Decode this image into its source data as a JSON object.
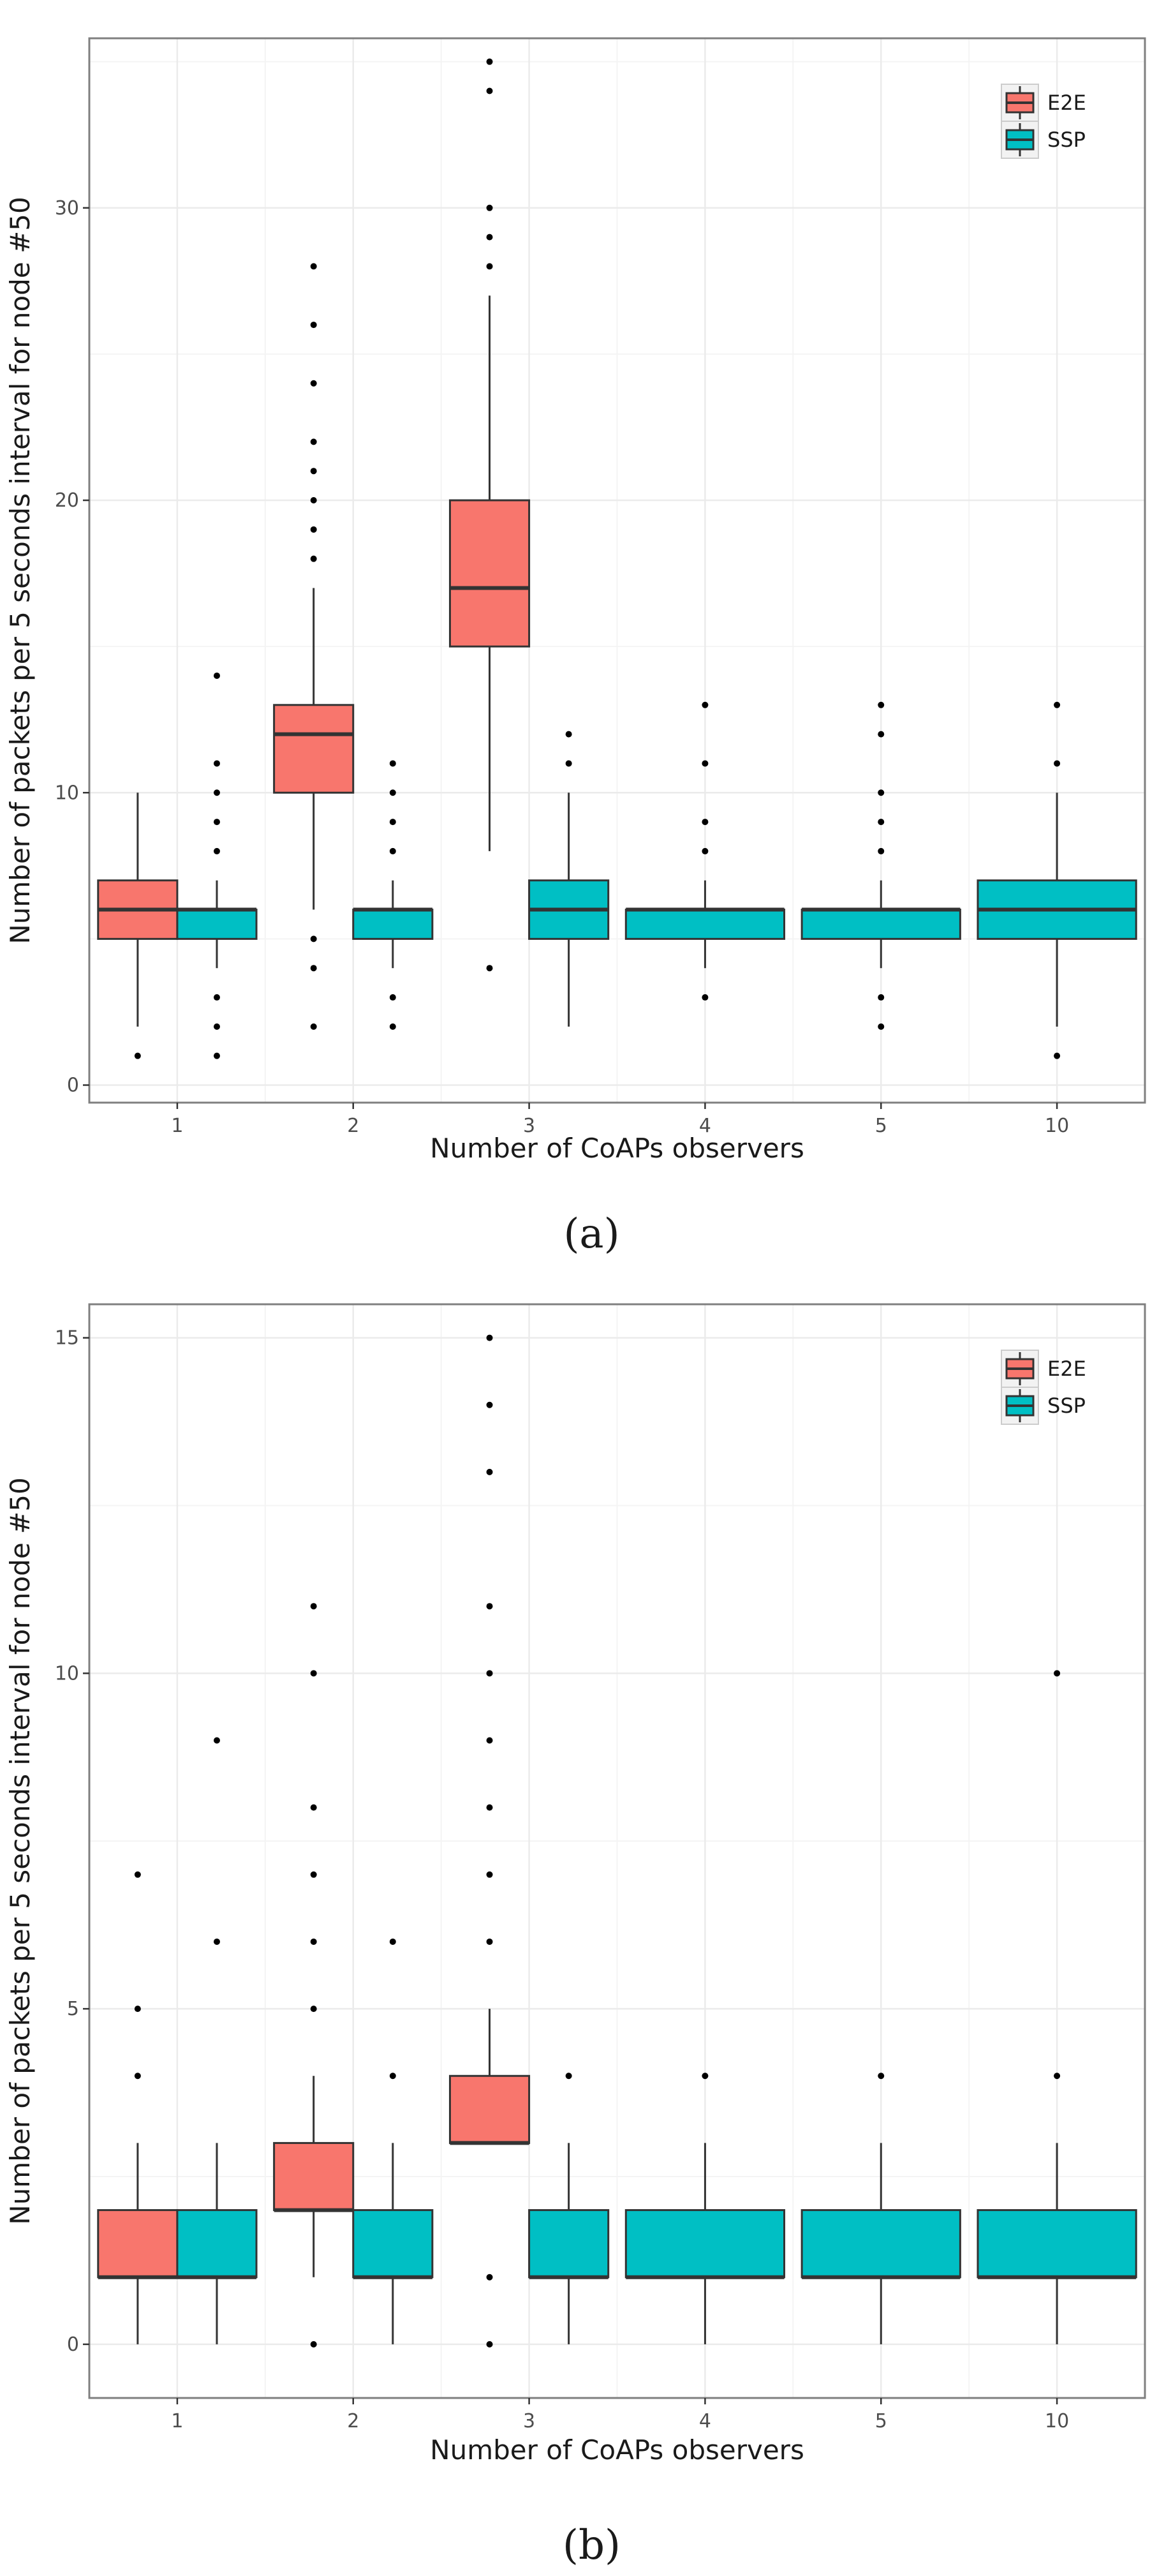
{
  "colors": {
    "e2e": "#F8766D",
    "ssp": "#00BFC4",
    "outline": "#333333",
    "grid_major": "#ebebeb",
    "grid_minor": "#f4f4f4",
    "panel_border": "#7f7f7f"
  },
  "chart_data": [
    {
      "type": "boxplot",
      "caption": "(a)",
      "xlabel": "Number of CoAPs observers",
      "ylabel": "Number of packets per 5 seconds interval for node #50",
      "categories": [
        "1",
        "2",
        "3",
        "4",
        "5",
        "10"
      ],
      "ylim": [
        -0.6,
        35.8
      ],
      "yticks": [
        0,
        10,
        20,
        30
      ],
      "grid": true,
      "legend": {
        "placement": "top-right",
        "entries": [
          "E2E",
          "SSP"
        ]
      },
      "series": [
        {
          "name": "E2E",
          "color_key": "e2e",
          "boxes": [
            {
              "category": "1",
              "whisker_low": 2,
              "q1": 5,
              "median": 6,
              "q3": 7,
              "whisker_high": 10,
              "outliers": [
                1
              ]
            },
            {
              "category": "2",
              "whisker_low": 6,
              "q1": 10,
              "median": 12,
              "q3": 13,
              "whisker_high": 17,
              "outliers": [
                2,
                4,
                5,
                18,
                19,
                20,
                21,
                22,
                24,
                26,
                28
              ]
            },
            {
              "category": "3",
              "whisker_low": 8,
              "q1": 15,
              "median": 17,
              "q3": 20,
              "whisker_high": 27,
              "outliers": [
                4,
                28,
                29,
                30,
                34,
                35
              ]
            }
          ]
        },
        {
          "name": "SSP",
          "color_key": "ssp",
          "boxes": [
            {
              "category": "1",
              "whisker_low": 4,
              "q1": 5,
              "median": 6,
              "q3": 6,
              "whisker_high": 7,
              "outliers": [
                1,
                2,
                3,
                8,
                9,
                10,
                11,
                14
              ]
            },
            {
              "category": "2",
              "whisker_low": 4,
              "q1": 5,
              "median": 6,
              "q3": 6,
              "whisker_high": 7,
              "outliers": [
                2,
                3,
                8,
                9,
                10,
                11
              ]
            },
            {
              "category": "3",
              "whisker_low": 2,
              "q1": 5,
              "median": 6,
              "q3": 7,
              "whisker_high": 10,
              "outliers": [
                11,
                12
              ]
            },
            {
              "category": "4",
              "whisker_low": 4,
              "q1": 5,
              "median": 6,
              "q3": 6,
              "whisker_high": 7,
              "outliers": [
                3,
                8,
                9,
                11,
                13
              ]
            },
            {
              "category": "5",
              "whisker_low": 4,
              "q1": 5,
              "median": 6,
              "q3": 6,
              "whisker_high": 7,
              "outliers": [
                2,
                3,
                8,
                9,
                10,
                12,
                13
              ]
            },
            {
              "category": "10",
              "whisker_low": 2,
              "q1": 5,
              "median": 6,
              "q3": 7,
              "whisker_high": 10,
              "outliers": [
                1,
                11,
                13
              ]
            }
          ]
        }
      ]
    },
    {
      "type": "boxplot",
      "caption": "(b)",
      "xlabel": "Number of CoAPs observers",
      "ylabel": "Number of packets per 5 seconds interval for node #50",
      "categories": [
        "1",
        "2",
        "3",
        "4",
        "5",
        "10"
      ],
      "ylim": [
        -0.8,
        15.5
      ],
      "yticks": [
        0,
        5,
        10,
        15
      ],
      "grid": true,
      "legend": {
        "placement": "top-right",
        "entries": [
          "E2E",
          "SSP"
        ]
      },
      "series": [
        {
          "name": "E2E",
          "color_key": "e2e",
          "boxes": [
            {
              "category": "1",
              "whisker_low": 0,
              "q1": 1,
              "median": 1,
              "q3": 2,
              "whisker_high": 3,
              "outliers": [
                4,
                5,
                7
              ]
            },
            {
              "category": "2",
              "whisker_low": 1,
              "q1": 2,
              "median": 2,
              "q3": 3,
              "whisker_high": 4,
              "outliers": [
                0,
                5,
                6,
                7,
                8,
                10,
                11
              ]
            },
            {
              "category": "3",
              "whisker_low": 3,
              "q1": 3,
              "median": 3,
              "q3": 4,
              "whisker_high": 5,
              "outliers": [
                0,
                1,
                6,
                7,
                8,
                9,
                10,
                11,
                13,
                14,
                15
              ]
            }
          ]
        },
        {
          "name": "SSP",
          "color_key": "ssp",
          "boxes": [
            {
              "category": "1",
              "whisker_low": 0,
              "q1": 1,
              "median": 1,
              "q3": 2,
              "whisker_high": 3,
              "outliers": [
                6,
                9
              ]
            },
            {
              "category": "2",
              "whisker_low": 0,
              "q1": 1,
              "median": 1,
              "q3": 2,
              "whisker_high": 3,
              "outliers": [
                4,
                6
              ]
            },
            {
              "category": "3",
              "whisker_low": 0,
              "q1": 1,
              "median": 1,
              "q3": 2,
              "whisker_high": 3,
              "outliers": [
                4
              ]
            },
            {
              "category": "4",
              "whisker_low": 0,
              "q1": 1,
              "median": 1,
              "q3": 2,
              "whisker_high": 3,
              "outliers": [
                4
              ]
            },
            {
              "category": "5",
              "whisker_low": 0,
              "q1": 1,
              "median": 1,
              "q3": 2,
              "whisker_high": 3,
              "outliers": [
                4
              ]
            },
            {
              "category": "10",
              "whisker_low": 0,
              "q1": 1,
              "median": 1,
              "q3": 2,
              "whisker_high": 3,
              "outliers": [
                4,
                10
              ]
            }
          ]
        }
      ]
    }
  ]
}
